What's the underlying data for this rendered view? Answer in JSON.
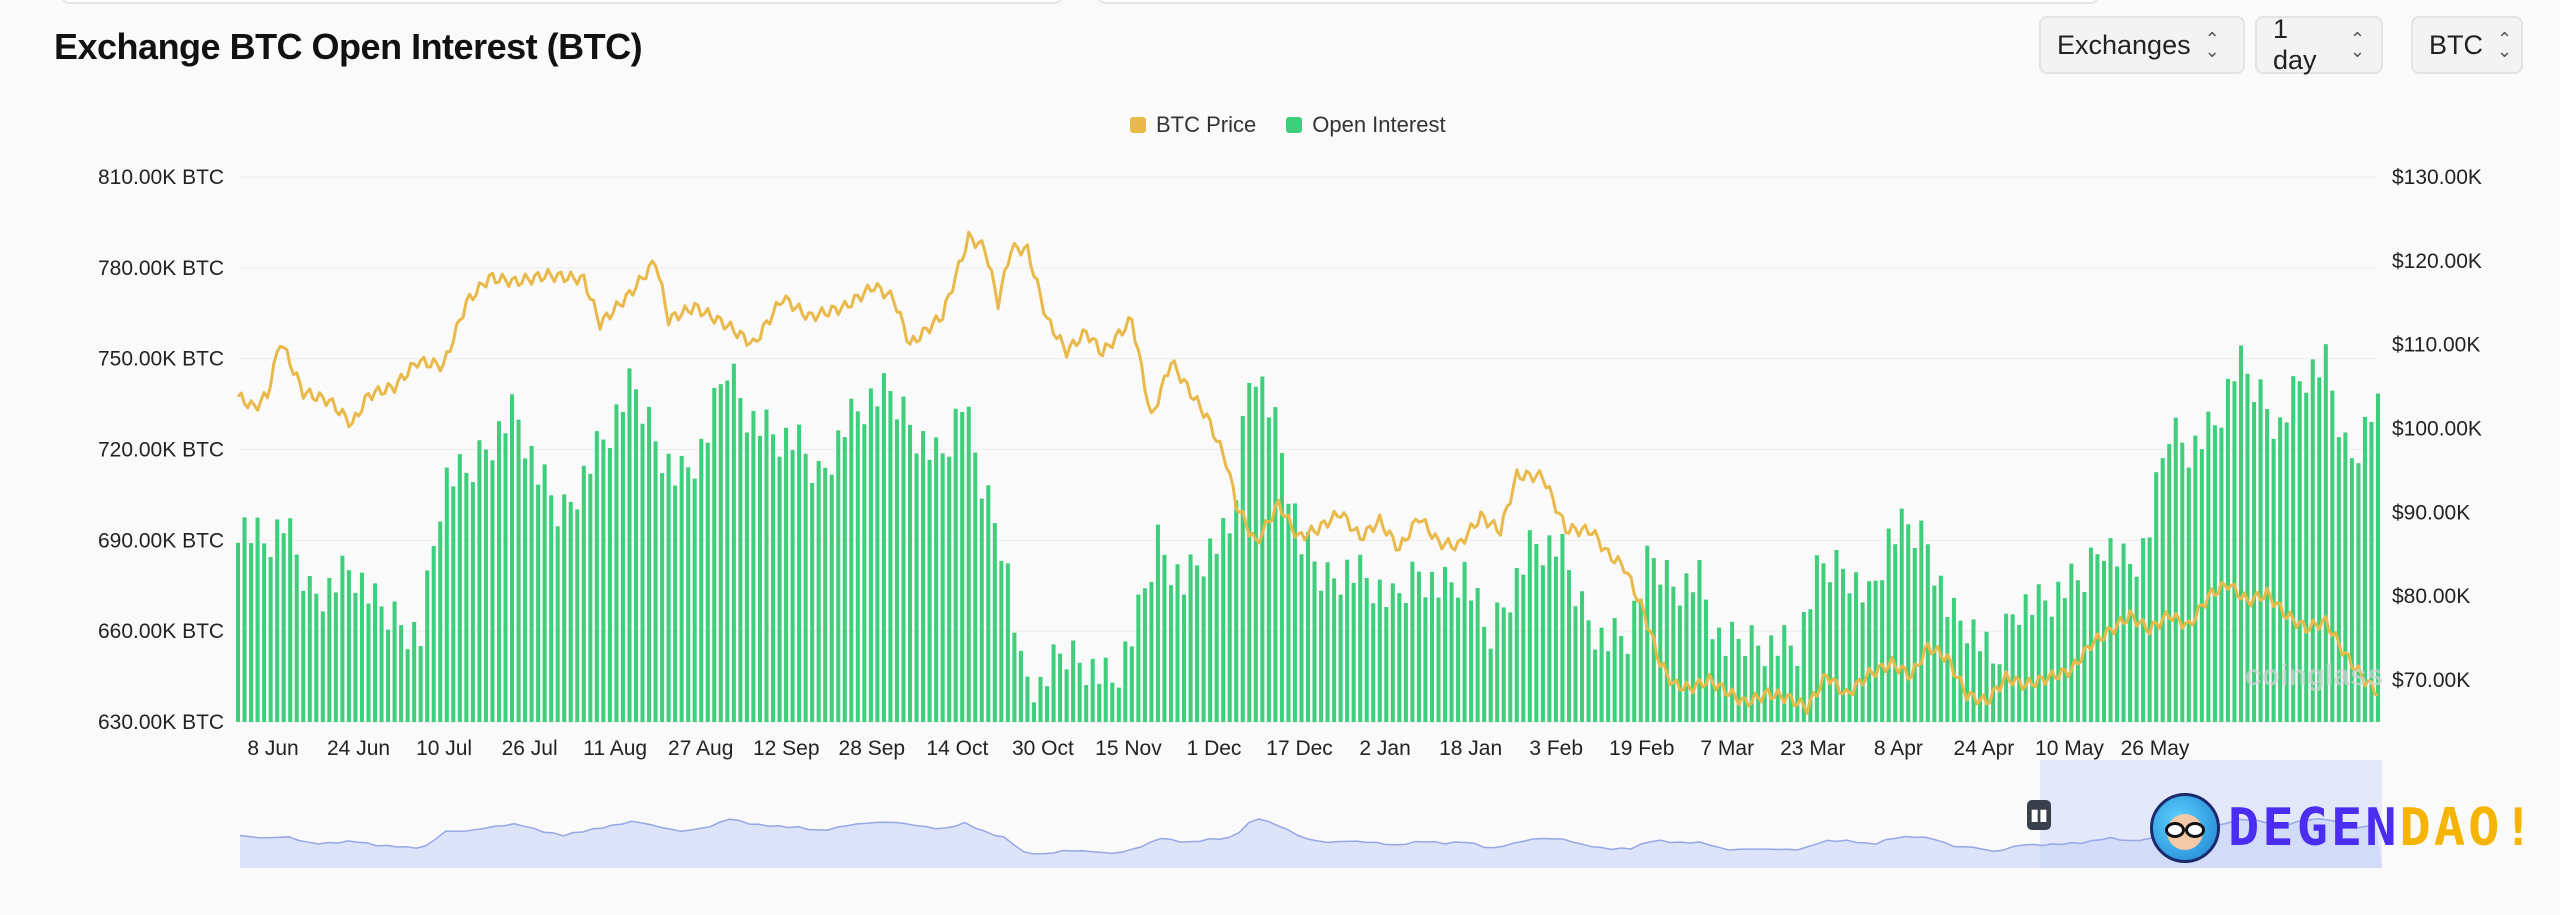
{
  "header": {
    "title": "Exchange BTC Open Interest (BTC)",
    "exchanges_label": "Exchanges",
    "interval_label": "1 day",
    "unit_label": "BTC"
  },
  "watermark": "coinglass",
  "logo": {
    "part_a": "DEGEN",
    "part_b": "DAO!"
  },
  "colors": {
    "price": "#e9b949",
    "open_interest": "#3fcf7c",
    "navigator": "#c5cff5"
  },
  "chart_data": {
    "type": "bar",
    "x_tick_labels": [
      "8 Jun",
      "24 Jun",
      "10 Jul",
      "26 Jul",
      "11 Aug",
      "27 Aug",
      "12 Sep",
      "28 Sep",
      "14 Oct",
      "30 Oct",
      "15 Nov",
      "1 Dec",
      "17 Dec",
      "2 Jan",
      "18 Jan",
      "3 Feb",
      "19 Feb",
      "7 Mar",
      "23 Mar",
      "8 Apr",
      "24 Apr",
      "10 May",
      "26 May"
    ],
    "y_left": {
      "ticks": [
        "810.00K BTC",
        "780.00K BTC",
        "750.00K BTC",
        "720.00K BTC",
        "690.00K BTC",
        "660.00K BTC",
        "630.00K BTC"
      ],
      "range": [
        630000,
        810000
      ]
    },
    "y_right": {
      "ticks": [
        "$130.00K",
        "$120.00K",
        "$110.00K",
        "$100.00K",
        "$90.00K",
        "$80.00K",
        "$70.00K"
      ],
      "range": [
        65000,
        130000
      ]
    },
    "legend": [
      "BTC Price",
      "Open Interest"
    ],
    "legend_position": "top-center",
    "series": [
      {
        "name": "Open Interest",
        "kind": "bar",
        "points": [
          [
            0,
            697000
          ],
          [
            16,
            689000
          ],
          [
            28,
            695000
          ],
          [
            44,
            673000
          ],
          [
            56,
            675000
          ],
          [
            70,
            681000
          ],
          [
            84,
            668000
          ],
          [
            98,
            664000
          ],
          [
            112,
            659000
          ],
          [
            126,
            710000
          ],
          [
            140,
            711000
          ],
          [
            154,
            723000
          ],
          [
            170,
            733000
          ],
          [
            184,
            711000
          ],
          [
            198,
            698000
          ],
          [
            214,
            714000
          ],
          [
            228,
            727000
          ],
          [
            242,
            741000
          ],
          [
            256,
            724000
          ],
          [
            270,
            710000
          ],
          [
            286,
            721000
          ],
          [
            300,
            748000
          ],
          [
            314,
            731000
          ],
          [
            328,
            725000
          ],
          [
            342,
            722000
          ],
          [
            356,
            711000
          ],
          [
            372,
            728000
          ],
          [
            386,
            736000
          ],
          [
            400,
            738000
          ],
          [
            414,
            728000
          ],
          [
            430,
            716000
          ],
          [
            444,
            735000
          ],
          [
            456,
            709000
          ],
          [
            470,
            688000
          ],
          [
            480,
            647000
          ],
          [
            492,
            641000
          ],
          [
            506,
            653000
          ],
          [
            520,
            650000
          ],
          [
            536,
            643000
          ],
          [
            550,
            660000
          ],
          [
            564,
            690000
          ],
          [
            580,
            676000
          ],
          [
            594,
            686000
          ],
          [
            608,
            691000
          ],
          [
            622,
            752000
          ],
          [
            638,
            724000
          ],
          [
            652,
            688000
          ],
          [
            666,
            677000
          ],
          [
            680,
            681000
          ],
          [
            694,
            677000
          ],
          [
            708,
            668000
          ],
          [
            724,
            681000
          ],
          [
            738,
            674000
          ],
          [
            752,
            679000
          ],
          [
            766,
            657000
          ],
          [
            780,
            674000
          ],
          [
            794,
            689000
          ],
          [
            810,
            687000
          ],
          [
            824,
            668000
          ],
          [
            838,
            657000
          ],
          [
            852,
            659000
          ],
          [
            866,
            684000
          ],
          [
            880,
            676000
          ],
          [
            896,
            677000
          ],
          [
            910,
            654000
          ],
          [
            924,
            657000
          ],
          [
            940,
            656000
          ],
          [
            956,
            655000
          ],
          [
            970,
            681000
          ],
          [
            986,
            682000
          ],
          [
            1000,
            670000
          ],
          [
            1012,
            690000
          ],
          [
            1024,
            694000
          ],
          [
            1036,
            690000
          ],
          [
            1050,
            665000
          ],
          [
            1062,
            662000
          ],
          [
            1076,
            648000
          ],
          [
            1090,
            670000
          ],
          [
            1104,
            669000
          ],
          [
            1118,
            673000
          ],
          [
            1130,
            676000
          ],
          [
            1144,
            691000
          ],
          [
            1158,
            681000
          ],
          [
            1170,
            688000
          ],
          [
            1184,
            727000
          ],
          [
            1198,
            721000
          ],
          [
            1212,
            728000
          ],
          [
            1226,
            748000
          ],
          [
            1240,
            738000
          ],
          [
            1252,
            728000
          ],
          [
            1266,
            745000
          ],
          [
            1280,
            747000
          ],
          [
            1294,
            716000
          ],
          [
            1308,
            733000
          ],
          [
            1312,
            732000
          ]
        ]
      },
      {
        "name": "BTC Price",
        "kind": "line",
        "points": [
          [
            0,
            103800
          ],
          [
            10,
            102500
          ],
          [
            18,
            104000
          ],
          [
            26,
            110500
          ],
          [
            40,
            104300
          ],
          [
            56,
            103300
          ],
          [
            70,
            100500
          ],
          [
            80,
            104000
          ],
          [
            96,
            105000
          ],
          [
            110,
            108000
          ],
          [
            126,
            107500
          ],
          [
            140,
            115000
          ],
          [
            154,
            118000
          ],
          [
            170,
            117500
          ],
          [
            190,
            118300
          ],
          [
            212,
            117800
          ],
          [
            222,
            112500
          ],
          [
            240,
            116000
          ],
          [
            256,
            120000
          ],
          [
            264,
            113000
          ],
          [
            280,
            114500
          ],
          [
            300,
            112300
          ],
          [
            316,
            110000
          ],
          [
            334,
            115600
          ],
          [
            350,
            113300
          ],
          [
            372,
            114500
          ],
          [
            390,
            117000
          ],
          [
            402,
            115500
          ],
          [
            412,
            110000
          ],
          [
            432,
            113500
          ],
          [
            448,
            122800
          ],
          [
            458,
            121500
          ],
          [
            466,
            115000
          ],
          [
            474,
            121500
          ],
          [
            484,
            121300
          ],
          [
            496,
            113000
          ],
          [
            508,
            109200
          ],
          [
            520,
            111500
          ],
          [
            530,
            109000
          ],
          [
            548,
            113000
          ],
          [
            560,
            101200
          ],
          [
            572,
            108000
          ],
          [
            584,
            104300
          ],
          [
            594,
            101400
          ],
          [
            606,
            96000
          ],
          [
            612,
            91000
          ],
          [
            624,
            86300
          ],
          [
            638,
            91000
          ],
          [
            650,
            87000
          ],
          [
            662,
            88000
          ],
          [
            676,
            90000
          ],
          [
            688,
            87000
          ],
          [
            700,
            89000
          ],
          [
            712,
            85600
          ],
          [
            724,
            89500
          ],
          [
            736,
            86400
          ],
          [
            748,
            86000
          ],
          [
            762,
            89500
          ],
          [
            774,
            87800
          ],
          [
            784,
            94400
          ],
          [
            800,
            94300
          ],
          [
            814,
            88000
          ],
          [
            830,
            87800
          ],
          [
            840,
            85000
          ],
          [
            850,
            83500
          ],
          [
            862,
            78000
          ],
          [
            872,
            72000
          ],
          [
            880,
            69500
          ],
          [
            890,
            69000
          ],
          [
            902,
            70000
          ],
          [
            914,
            68500
          ],
          [
            924,
            67300
          ],
          [
            938,
            68400
          ],
          [
            950,
            67900
          ],
          [
            962,
            66700
          ],
          [
            974,
            70600
          ],
          [
            986,
            68200
          ],
          [
            1000,
            70700
          ],
          [
            1014,
            72000
          ],
          [
            1026,
            70500
          ],
          [
            1036,
            74000
          ],
          [
            1048,
            72600
          ],
          [
            1060,
            68200
          ],
          [
            1072,
            67400
          ],
          [
            1084,
            70300
          ],
          [
            1096,
            69400
          ],
          [
            1110,
            70300
          ],
          [
            1124,
            71200
          ],
          [
            1136,
            74300
          ],
          [
            1148,
            75900
          ],
          [
            1160,
            77700
          ],
          [
            1172,
            76000
          ],
          [
            1184,
            77800
          ],
          [
            1196,
            76400
          ],
          [
            1208,
            80000
          ],
          [
            1220,
            81500
          ],
          [
            1232,
            79400
          ],
          [
            1244,
            80300
          ],
          [
            1256,
            77700
          ],
          [
            1268,
            76200
          ],
          [
            1280,
            77000
          ],
          [
            1292,
            73000
          ],
          [
            1304,
            70000
          ],
          [
            1312,
            68500
          ]
        ]
      }
    ]
  }
}
